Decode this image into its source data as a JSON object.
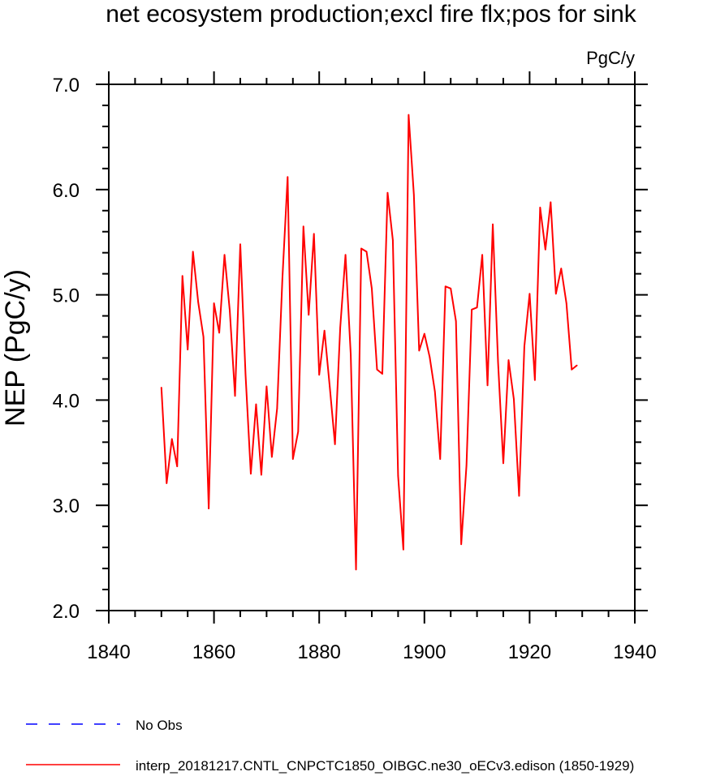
{
  "chart_data": {
    "type": "line",
    "title": "net ecosystem production;excl fire flx;pos for sink",
    "units_label": "PgC/y",
    "ylabel": "NEP  (PgC/y)",
    "xlabel": "",
    "xlim": [
      1840,
      1940
    ],
    "ylim": [
      2.0,
      7.0
    ],
    "x_ticks": [
      1840,
      1860,
      1880,
      1900,
      1920,
      1940
    ],
    "x_tick_labels": [
      "1840",
      "1860",
      "1880",
      "1900",
      "1920",
      "1940"
    ],
    "y_ticks": [
      2.0,
      3.0,
      4.0,
      5.0,
      6.0,
      7.0
    ],
    "y_tick_labels": [
      "2.0",
      "3.0",
      "4.0",
      "5.0",
      "6.0",
      "7.0"
    ],
    "grid": false,
    "legend_position": "bottom-left",
    "series": [
      {
        "name": "No Obs",
        "color": "#0000ff",
        "style": "dashed",
        "x": [],
        "values": []
      },
      {
        "name": "interp_20181217.CNTL_CNPCTC1850_OIBGC.ne30_oECv3.edison (1850-1929)",
        "color": "#ff0000",
        "style": "solid",
        "x": [
          1850,
          1851,
          1852,
          1853,
          1854,
          1855,
          1856,
          1857,
          1858,
          1859,
          1860,
          1861,
          1862,
          1863,
          1864,
          1865,
          1866,
          1867,
          1868,
          1869,
          1870,
          1871,
          1872,
          1873,
          1874,
          1875,
          1876,
          1877,
          1878,
          1879,
          1880,
          1881,
          1882,
          1883,
          1884,
          1885,
          1886,
          1887,
          1888,
          1889,
          1890,
          1891,
          1892,
          1893,
          1894,
          1895,
          1896,
          1897,
          1898,
          1899,
          1900,
          1901,
          1902,
          1903,
          1904,
          1905,
          1906,
          1907,
          1908,
          1909,
          1910,
          1911,
          1912,
          1913,
          1914,
          1915,
          1916,
          1917,
          1918,
          1919,
          1920,
          1921,
          1922,
          1923,
          1924,
          1925,
          1926,
          1927,
          1928,
          1929
        ],
        "values": [
          4.12,
          3.21,
          3.63,
          3.37,
          5.18,
          4.48,
          5.41,
          4.93,
          4.6,
          2.97,
          4.92,
          4.64,
          5.38,
          4.85,
          4.04,
          5.48,
          4.24,
          3.3,
          3.96,
          3.29,
          4.13,
          3.46,
          3.92,
          5.15,
          6.12,
          3.44,
          3.7,
          5.65,
          4.81,
          5.58,
          4.24,
          4.66,
          4.13,
          3.58,
          4.69,
          5.38,
          4.43,
          2.39,
          5.44,
          5.41,
          5.06,
          4.29,
          4.25,
          5.97,
          5.52,
          3.28,
          2.58,
          6.71,
          5.95,
          4.47,
          4.63,
          4.41,
          4.08,
          3.44,
          5.08,
          5.06,
          4.75,
          2.63,
          3.38,
          4.86,
          4.88,
          5.38,
          4.14,
          5.67,
          4.36,
          3.4,
          4.38,
          4.01,
          3.09,
          4.51,
          5.01,
          4.19,
          5.83,
          5.43,
          5.88,
          5.01,
          5.25,
          4.92,
          4.29,
          4.33
        ]
      }
    ]
  }
}
